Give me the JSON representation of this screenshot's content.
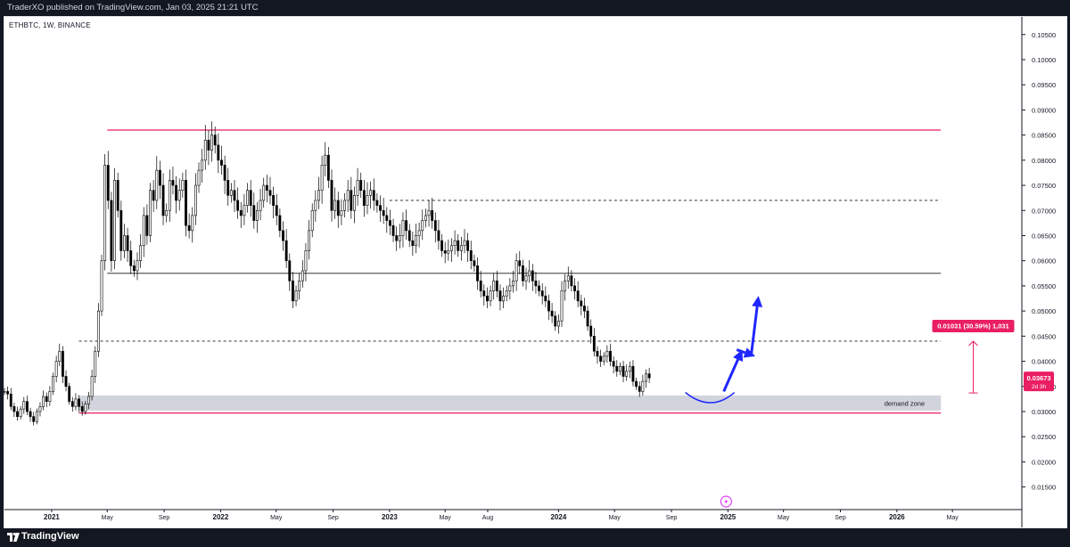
{
  "header": {
    "published": "TraderXO published on TradingView.com, Jan 03, 2025 21:21 UTC"
  },
  "symbol": {
    "label": "ETHBTC, 1W, BINANCE"
  },
  "footer": {
    "brand": "TradingView"
  },
  "colors": {
    "up": "#ffffff",
    "down": "#000000",
    "wick": "#000000",
    "resistance": "#e91e63",
    "arrow": "#2026ff",
    "zone": "#d1d4dc",
    "price_badge": "#e91e63",
    "axis_text": "#131722"
  },
  "icons": {
    "footer_logo": "tradingview-logo-icon",
    "event": "lightning-icon"
  },
  "chart_data": {
    "type": "candlestick",
    "timeframe": "1W",
    "x_range": [
      "2020-09-21",
      "2026-09-28"
    ],
    "ylim": [
      0.0105,
      0.1085
    ],
    "y_ticks": [
      "0.10500",
      "0.10000",
      "0.09500",
      "0.09000",
      "0.08500",
      "0.08000",
      "0.07500",
      "0.07000",
      "0.06500",
      "0.06000",
      "0.05500",
      "0.05000",
      "0.04500",
      "0.04000",
      "0.03500",
      "0.03000",
      "0.02500",
      "0.02000",
      "0.01500"
    ],
    "x_ticks": [
      {
        "date": "2021-01-01",
        "label": "2021",
        "major": true
      },
      {
        "date": "2021-05-01",
        "label": "May",
        "major": false
      },
      {
        "date": "2021-09-01",
        "label": "Sep",
        "major": false
      },
      {
        "date": "2022-01-01",
        "label": "2022",
        "major": true
      },
      {
        "date": "2022-05-01",
        "label": "May",
        "major": false
      },
      {
        "date": "2022-09-01",
        "label": "Sep",
        "major": false
      },
      {
        "date": "2023-01-01",
        "label": "2023",
        "major": true
      },
      {
        "date": "2023-05-01",
        "label": "May",
        "major": false
      },
      {
        "date": "2023-08-01",
        "label": "Aug",
        "major": false
      },
      {
        "date": "2024-01-01",
        "label": "2024",
        "major": true
      },
      {
        "date": "2024-05-01",
        "label": "May",
        "major": false
      },
      {
        "date": "2024-09-01",
        "label": "Sep",
        "major": false
      },
      {
        "date": "2025-01-01",
        "label": "2025",
        "major": true
      },
      {
        "date": "2025-05-01",
        "label": "May",
        "major": false
      },
      {
        "date": "2025-09-01",
        "label": "Sep",
        "major": false
      },
      {
        "date": "2026-01-01",
        "label": "2026",
        "major": true
      },
      {
        "date": "2026-05-01",
        "label": "May",
        "major": false
      }
    ],
    "series_start": "2020-09-21",
    "close": [
      0.034,
      0.0335,
      0.031,
      0.03,
      0.029,
      0.0305,
      0.032,
      0.03,
      0.029,
      0.028,
      0.03,
      0.031,
      0.033,
      0.032,
      0.034,
      0.037,
      0.04,
      0.042,
      0.037,
      0.035,
      0.032,
      0.031,
      0.0325,
      0.031,
      0.03,
      0.0315,
      0.033,
      0.037,
      0.042,
      0.05,
      0.06,
      0.079,
      0.072,
      0.06,
      0.076,
      0.07,
      0.062,
      0.065,
      0.062,
      0.059,
      0.058,
      0.06,
      0.063,
      0.069,
      0.065,
      0.074,
      0.072,
      0.078,
      0.075,
      0.069,
      0.07,
      0.076,
      0.075,
      0.072,
      0.074,
      0.076,
      0.067,
      0.066,
      0.069,
      0.075,
      0.078,
      0.08,
      0.084,
      0.082,
      0.085,
      0.083,
      0.08,
      0.079,
      0.076,
      0.073,
      0.074,
      0.072,
      0.07,
      0.069,
      0.071,
      0.074,
      0.071,
      0.068,
      0.07,
      0.072,
      0.075,
      0.074,
      0.073,
      0.071,
      0.069,
      0.066,
      0.064,
      0.06,
      0.056,
      0.052,
      0.054,
      0.056,
      0.058,
      0.062,
      0.066,
      0.07,
      0.072,
      0.074,
      0.079,
      0.081,
      0.076,
      0.07,
      0.072,
      0.069,
      0.07,
      0.072,
      0.074,
      0.07,
      0.073,
      0.076,
      0.074,
      0.071,
      0.073,
      0.074,
      0.072,
      0.071,
      0.07,
      0.069,
      0.068,
      0.067,
      0.065,
      0.064,
      0.065,
      0.068,
      0.066,
      0.064,
      0.063,
      0.065,
      0.066,
      0.068,
      0.069,
      0.07,
      0.068,
      0.066,
      0.064,
      0.062,
      0.0615,
      0.062,
      0.063,
      0.064,
      0.062,
      0.063,
      0.064,
      0.062,
      0.06,
      0.059,
      0.056,
      0.054,
      0.053,
      0.052,
      0.054,
      0.056,
      0.054,
      0.052,
      0.053,
      0.054,
      0.055,
      0.056,
      0.06,
      0.059,
      0.056,
      0.057,
      0.058,
      0.056,
      0.055,
      0.054,
      0.053,
      0.052,
      0.05,
      0.049,
      0.047,
      0.048,
      0.054,
      0.056,
      0.057,
      0.055,
      0.054,
      0.052,
      0.051,
      0.05,
      0.047,
      0.045,
      0.042,
      0.041,
      0.04,
      0.041,
      0.042,
      0.04,
      0.039,
      0.038,
      0.039,
      0.037,
      0.038,
      0.039,
      0.036,
      0.035,
      0.034,
      0.036,
      0.0375,
      0.0367
    ],
    "resistance_lines": [
      {
        "from": "2021-05-01",
        "to": "2026-04-06",
        "y": 0.086,
        "style": "solid",
        "color": "#e91e63"
      },
      {
        "from": "2021-03-01",
        "to": "2026-04-06",
        "y": 0.0297,
        "style": "solid",
        "color": "#e91e63"
      }
    ],
    "levels": [
      {
        "from": "2023-01-01",
        "to": "2026-04-06",
        "y": 0.072,
        "style": "dashed"
      },
      {
        "from": "2021-05-01",
        "to": "2026-04-06",
        "y": 0.0575,
        "style": "solid"
      },
      {
        "from": "2021-03-01",
        "to": "2026-04-06",
        "y": 0.044,
        "style": "dashed"
      }
    ],
    "demand_zone": {
      "from": "2021-03-01",
      "to": "2026-04-06",
      "y_low": 0.0302,
      "y_high": 0.0332,
      "label": "demand zone"
    },
    "measure": {
      "date": "2026-06-15",
      "y_from": 0.0337,
      "y_to": 0.044,
      "label": "0.01031 (30.59%) 1,031"
    },
    "last_price": {
      "label": "0.03673",
      "sub": "2d 3h",
      "y": 0.0367
    },
    "projection_arrows": [
      {
        "from_date": "2024-12-23",
        "from_y": 0.034,
        "to_date": "2025-02-01",
        "to_y": 0.0423
      },
      {
        "from_date": "2025-01-20",
        "from_y": 0.0423,
        "to_date": "2025-03-01",
        "to_y": 0.041
      },
      {
        "from_date": "2025-02-20",
        "from_y": 0.041,
        "to_date": "2025-03-08",
        "to_y": 0.053
      }
    ],
    "bottom_arc": {
      "from_date": "2024-10-01",
      "mid_date": "2024-11-25",
      "to_date": "2025-01-15",
      "y_edge": 0.0338,
      "y_mid": 0.0315
    }
  }
}
